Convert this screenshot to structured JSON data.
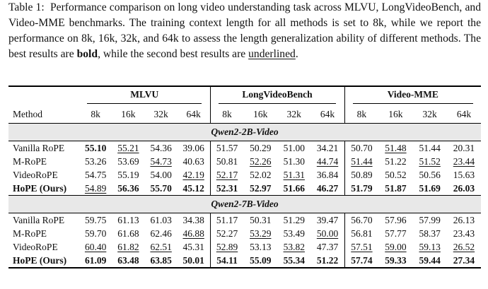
{
  "caption": {
    "label": "Table 1:",
    "text": "Performance comparison on long video understanding task across MLVU, LongVideoBench, and Video-MME benchmarks. The training context length for all methods is set to 8k, while we report the performance on 8k, 16k, 32k, and 64k to assess the length generalization ability of different methods. The best results are",
    "bold_word": "bold",
    "text_2": ", while the second best results are",
    "underlined_word": "underlined",
    "text_3": "."
  },
  "table": {
    "method_header": "Method",
    "groups": [
      {
        "name": "MLVU",
        "columns": [
          "8k",
          "16k",
          "32k",
          "64k"
        ]
      },
      {
        "name": "LongVideoBench",
        "columns": [
          "8k",
          "16k",
          "32k",
          "64k"
        ]
      },
      {
        "name": "Video-MME",
        "columns": [
          "8k",
          "16k",
          "32k",
          "64k"
        ]
      }
    ],
    "sections": [
      {
        "title": "Qwen2-2B-Video",
        "rows": [
          {
            "method": "Vanilla RoPE",
            "cells": [
              "55.10",
              "55.21",
              "54.36",
              "39.06",
              "51.57",
              "50.29",
              "51.00",
              "34.21",
              "50.70",
              "51.48",
              "51.44",
              "20.31"
            ],
            "bold": [
              0
            ],
            "underline": [
              1,
              9
            ]
          },
          {
            "method": "M-RoPE",
            "cells": [
              "53.26",
              "53.69",
              "54.73",
              "40.63",
              "50.81",
              "52.26",
              "51.30",
              "44.74",
              "51.44",
              "51.22",
              "51.52",
              "23.44"
            ],
            "bold": [],
            "underline": [
              2,
              5,
              7,
              8,
              10,
              11
            ]
          },
          {
            "method": "VideoRoPE",
            "cells": [
              "54.75",
              "55.19",
              "54.00",
              "42.19",
              "52.17",
              "52.02",
              "51.31",
              "36.84",
              "50.89",
              "50.52",
              "50.56",
              "15.63"
            ],
            "bold": [],
            "underline": [
              3,
              4,
              6
            ]
          },
          {
            "method": "HoPE (Ours)",
            "method_bold": true,
            "cells": [
              "54.89",
              "56.36",
              "55.70",
              "45.12",
              "52.31",
              "52.97",
              "51.66",
              "46.27",
              "51.79",
              "51.87",
              "51.69",
              "26.03"
            ],
            "bold": [
              1,
              2,
              3,
              4,
              5,
              6,
              7,
              8,
              9,
              10,
              11
            ],
            "underline": [
              0
            ]
          }
        ]
      },
      {
        "title": "Qwen2-7B-Video",
        "rows": [
          {
            "method": "Vanilla RoPE",
            "cells": [
              "59.75",
              "61.13",
              "61.03",
              "34.38",
              "51.17",
              "50.31",
              "51.29",
              "39.47",
              "56.70",
              "57.96",
              "57.99",
              "26.13"
            ],
            "bold": [],
            "underline": []
          },
          {
            "method": "M-RoPE",
            "cells": [
              "59.70",
              "61.68",
              "62.46",
              "46.88",
              "52.27",
              "53.29",
              "53.49",
              "50.00",
              "56.81",
              "57.77",
              "58.37",
              "23.43"
            ],
            "bold": [],
            "underline": [
              3,
              5,
              7
            ]
          },
          {
            "method": "VideoRoPE",
            "cells": [
              "60.40",
              "61.82",
              "62.51",
              "45.31",
              "52.89",
              "53.13",
              "53.82",
              "47.37",
              "57.51",
              "59.00",
              "59.13",
              "26.52"
            ],
            "bold": [],
            "underline": [
              0,
              1,
              2,
              4,
              6,
              8,
              9,
              10,
              11
            ]
          },
          {
            "method": "HoPE (Ours)",
            "method_bold": true,
            "cells": [
              "61.09",
              "63.48",
              "63.85",
              "50.01",
              "54.11",
              "55.09",
              "55.34",
              "51.22",
              "57.74",
              "59.33",
              "59.44",
              "27.34"
            ],
            "bold": [
              0,
              1,
              2,
              3,
              4,
              5,
              6,
              7,
              8,
              9,
              10,
              11
            ],
            "underline": []
          }
        ]
      }
    ]
  }
}
